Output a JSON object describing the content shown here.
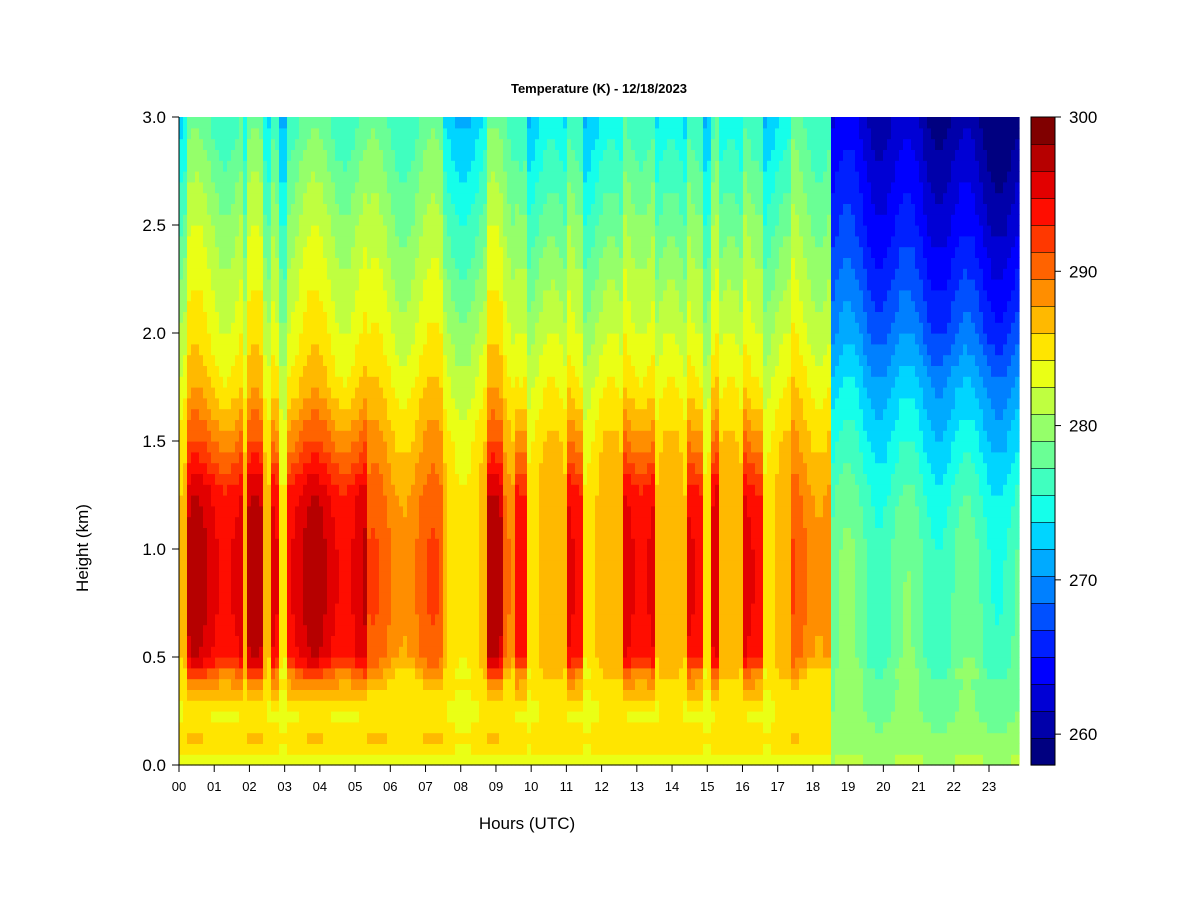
{
  "chart_data": {
    "type": "heatmap",
    "title": "Temperature (K) - 12/18/2023",
    "xlabel": "Hours (UTC)",
    "ylabel": "Height (km)",
    "xlim": [
      0,
      23.9
    ],
    "ylim": [
      0,
      3.0
    ],
    "x_tick_labels": [
      "00",
      "01",
      "02",
      "03",
      "04",
      "05",
      "06",
      "07",
      "08",
      "09",
      "10",
      "11",
      "12",
      "13",
      "14",
      "15",
      "16",
      "17",
      "18",
      "19",
      "20",
      "21",
      "22",
      "23"
    ],
    "y_ticks": [
      0.0,
      0.5,
      1.0,
      1.5,
      2.0,
      2.5,
      3.0
    ],
    "y_tick_labels": [
      "0.0",
      "0.5",
      "1.0",
      "1.5",
      "2.0",
      "2.5",
      "3.0"
    ],
    "colorbar": {
      "range": [
        258,
        300
      ],
      "tick_values": [
        260,
        270,
        280,
        290,
        300
      ],
      "tick_labels": [
        "260",
        "270",
        "280",
        "290",
        "300"
      ],
      "colors": [
        "#000080",
        "#0000aa",
        "#0000d5",
        "#0000ff",
        "#0020ff",
        "#0050ff",
        "#0080ff",
        "#00aaff",
        "#00d5ff",
        "#15ffea",
        "#40ffbf",
        "#6aff95",
        "#95ff6a",
        "#bfff40",
        "#eaff15",
        "#ffe500",
        "#ffb900",
        "#ff8e00",
        "#ff6300",
        "#ff3800",
        "#ff0d00",
        "#e20000",
        "#b60000",
        "#800000"
      ]
    },
    "profiles": {
      "heights_km": [
        0.0,
        0.1,
        0.25,
        0.4,
        0.5,
        0.75,
        1.0,
        1.25,
        1.5,
        1.75,
        2.0,
        2.5,
        3.0
      ],
      "warm_columns": [
        282,
        286,
        284,
        289,
        295,
        296,
        296,
        295,
        290,
        286,
        284,
        281,
        277
      ],
      "mild_columns": [
        283,
        286,
        285,
        286,
        289,
        290,
        290,
        289,
        287,
        285,
        283,
        280,
        277
      ],
      "cool_columns": [
        283,
        285,
        284,
        285,
        286,
        286,
        286,
        286,
        285,
        283,
        281,
        277,
        273
      ],
      "cold_evening": [
        281,
        280,
        279,
        279,
        278,
        278,
        278,
        277,
        275,
        273,
        270,
        266,
        263
      ]
    },
    "regimes": [
      {
        "start": 0.0,
        "end": 0.25,
        "profile": "cool_columns"
      },
      {
        "start": 0.25,
        "end": 1.8,
        "profile": "warm_columns"
      },
      {
        "start": 1.8,
        "end": 1.95,
        "profile": "cool_columns"
      },
      {
        "start": 1.95,
        "end": 2.4,
        "profile": "warm_columns"
      },
      {
        "start": 2.4,
        "end": 2.65,
        "profile": "cool_columns"
      },
      {
        "start": 2.65,
        "end": 2.9,
        "profile": "warm_columns"
      },
      {
        "start": 2.9,
        "end": 3.1,
        "profile": "cool_columns"
      },
      {
        "start": 3.1,
        "end": 5.4,
        "profile": "warm_columns"
      },
      {
        "start": 5.4,
        "end": 6.6,
        "profile": "mild_columns"
      },
      {
        "start": 6.6,
        "end": 7.5,
        "profile": "mild_columns"
      },
      {
        "start": 7.5,
        "end": 8.8,
        "profile": "cool_columns"
      },
      {
        "start": 8.8,
        "end": 9.2,
        "profile": "warm_columns"
      },
      {
        "start": 9.2,
        "end": 9.6,
        "profile": "mild_columns"
      },
      {
        "start": 9.6,
        "end": 9.9,
        "profile": "warm_columns"
      },
      {
        "start": 9.9,
        "end": 11.0,
        "profile": "cool_columns"
      },
      {
        "start": 11.0,
        "end": 11.5,
        "profile": "warm_columns"
      },
      {
        "start": 11.5,
        "end": 12.6,
        "profile": "cool_columns"
      },
      {
        "start": 12.6,
        "end": 13.6,
        "profile": "warm_columns"
      },
      {
        "start": 13.6,
        "end": 14.5,
        "profile": "cool_columns"
      },
      {
        "start": 14.5,
        "end": 14.9,
        "profile": "warm_columns"
      },
      {
        "start": 14.9,
        "end": 15.1,
        "profile": "cool_columns"
      },
      {
        "start": 15.1,
        "end": 15.4,
        "profile": "warm_columns"
      },
      {
        "start": 15.4,
        "end": 16.1,
        "profile": "cool_columns"
      },
      {
        "start": 16.1,
        "end": 16.6,
        "profile": "warm_columns"
      },
      {
        "start": 16.6,
        "end": 17.4,
        "profile": "cool_columns"
      },
      {
        "start": 17.4,
        "end": 18.6,
        "profile": "mild_columns"
      },
      {
        "start": 18.6,
        "end": 23.9,
        "profile": "cold_evening"
      }
    ]
  }
}
